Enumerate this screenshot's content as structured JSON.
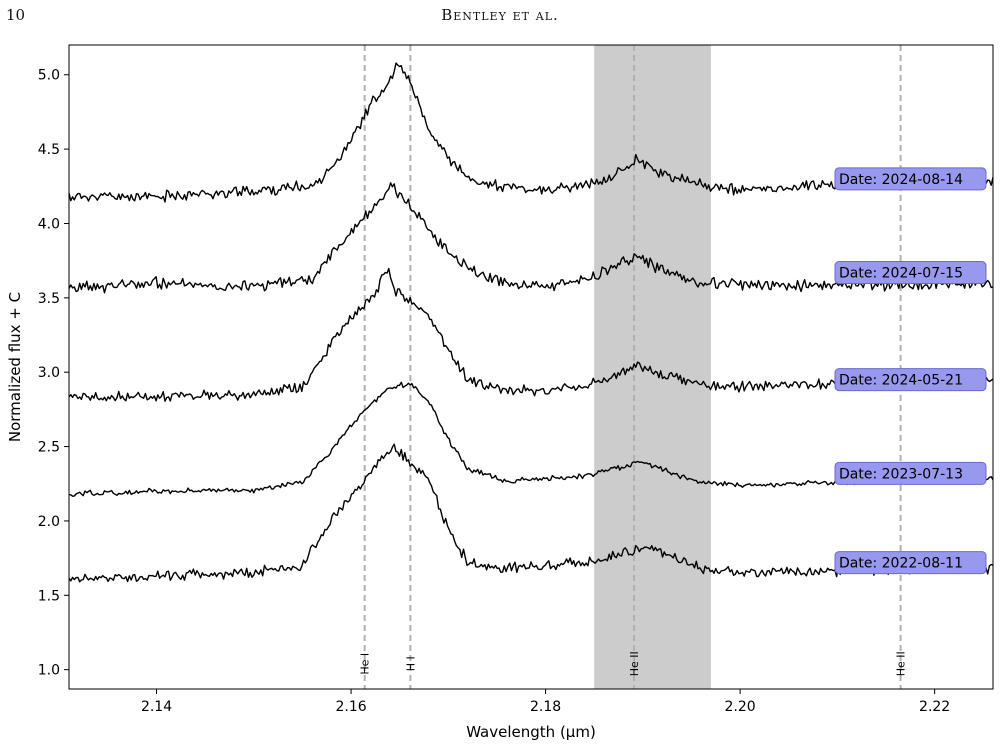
{
  "header": {
    "page_number": "10",
    "running_head": "Bentley et al."
  },
  "chart_data": {
    "type": "line",
    "title": "",
    "xlabel": "Wavelength (μm)",
    "ylabel": "Normalized flux + C",
    "xlim": [
      2.131,
      2.226
    ],
    "ylim": [
      0.87,
      5.2
    ],
    "xticks": [
      2.14,
      2.16,
      2.18,
      2.2,
      2.22
    ],
    "xtick_labels": [
      "2.14",
      "2.16",
      "2.18",
      "2.20",
      "2.22"
    ],
    "yticks": [
      1.0,
      1.5,
      2.0,
      2.5,
      3.0,
      3.5,
      4.0,
      4.5,
      5.0
    ],
    "ytick_labels": [
      "1.0",
      "1.5",
      "2.0",
      "2.5",
      "3.0",
      "3.5",
      "4.0",
      "4.5",
      "5.0"
    ],
    "shaded_region": {
      "x": [
        2.185,
        2.197
      ],
      "color": "#cccccc"
    },
    "reference_lines": [
      {
        "label": "He I",
        "x": 2.1614
      },
      {
        "label": "H I",
        "x": 2.1661
      },
      {
        "label": "He II",
        "x": 2.1891
      },
      {
        "label": "He II",
        "x": 2.2165
      }
    ],
    "line_color": "#000000",
    "ref_line_color": "#b0b0b0",
    "label_box_color": "#9898ee",
    "label_box_edge": "#6a6acc",
    "series": [
      {
        "label": "Date: 2024-08-14",
        "offset": 4.18,
        "seed": 11,
        "noise": 0.028,
        "points": [
          [
            2.131,
            4.18
          ],
          [
            2.14,
            4.18
          ],
          [
            2.15,
            4.22
          ],
          [
            2.156,
            4.25
          ],
          [
            2.159,
            4.45
          ],
          [
            2.162,
            4.8
          ],
          [
            2.164,
            4.95
          ],
          [
            2.1648,
            5.08
          ],
          [
            2.166,
            4.95
          ],
          [
            2.168,
            4.62
          ],
          [
            2.17,
            4.45
          ],
          [
            2.172,
            4.3
          ],
          [
            2.176,
            4.24
          ],
          [
            2.18,
            4.22
          ],
          [
            2.186,
            4.28
          ],
          [
            2.1895,
            4.44
          ],
          [
            2.192,
            4.33
          ],
          [
            2.196,
            4.26
          ],
          [
            2.2,
            4.22
          ],
          [
            2.21,
            4.27
          ],
          [
            2.226,
            4.28
          ]
        ]
      },
      {
        "label": "Date: 2024-07-15",
        "offset": 3.55,
        "seed": 23,
        "noise": 0.03,
        "points": [
          [
            2.131,
            3.56
          ],
          [
            2.14,
            3.6
          ],
          [
            2.15,
            3.58
          ],
          [
            2.156,
            3.62
          ],
          [
            2.159,
            3.88
          ],
          [
            2.162,
            4.08
          ],
          [
            2.164,
            4.25
          ],
          [
            2.1658,
            4.15
          ],
          [
            2.168,
            3.95
          ],
          [
            2.17,
            3.82
          ],
          [
            2.172,
            3.7
          ],
          [
            2.176,
            3.6
          ],
          [
            2.18,
            3.58
          ],
          [
            2.184,
            3.62
          ],
          [
            2.1895,
            3.78
          ],
          [
            2.192,
            3.68
          ],
          [
            2.196,
            3.6
          ],
          [
            2.2,
            3.59
          ],
          [
            2.21,
            3.58
          ],
          [
            2.226,
            3.6
          ]
        ]
      },
      {
        "label": "Date: 2024-05-21",
        "offset": 2.83,
        "seed": 37,
        "noise": 0.026,
        "points": [
          [
            2.131,
            2.82
          ],
          [
            2.14,
            2.84
          ],
          [
            2.15,
            2.85
          ],
          [
            2.155,
            2.9
          ],
          [
            2.159,
            3.3
          ],
          [
            2.162,
            3.48
          ],
          [
            2.1638,
            3.7
          ],
          [
            2.1645,
            3.55
          ],
          [
            2.166,
            3.48
          ],
          [
            2.168,
            3.38
          ],
          [
            2.17,
            3.15
          ],
          [
            2.172,
            2.95
          ],
          [
            2.176,
            2.88
          ],
          [
            2.18,
            2.88
          ],
          [
            2.184,
            2.9
          ],
          [
            2.1895,
            3.05
          ],
          [
            2.192,
            2.98
          ],
          [
            2.196,
            2.92
          ],
          [
            2.2,
            2.9
          ],
          [
            2.21,
            2.92
          ],
          [
            2.226,
            2.95
          ]
        ]
      },
      {
        "label": "Date: 2023-07-13",
        "offset": 2.2,
        "seed": 49,
        "noise": 0.014,
        "points": [
          [
            2.131,
            2.18
          ],
          [
            2.14,
            2.2
          ],
          [
            2.15,
            2.21
          ],
          [
            2.155,
            2.26
          ],
          [
            2.158,
            2.48
          ],
          [
            2.161,
            2.72
          ],
          [
            2.164,
            2.9
          ],
          [
            2.166,
            2.92
          ],
          [
            2.168,
            2.8
          ],
          [
            2.17,
            2.55
          ],
          [
            2.172,
            2.35
          ],
          [
            2.176,
            2.27
          ],
          [
            2.18,
            2.28
          ],
          [
            2.184,
            2.3
          ],
          [
            2.19,
            2.4
          ],
          [
            2.193,
            2.32
          ],
          [
            2.196,
            2.26
          ],
          [
            2.2,
            2.24
          ],
          [
            2.21,
            2.26
          ],
          [
            2.226,
            2.28
          ]
        ]
      },
      {
        "label": "Date: 2022-08-11",
        "offset": 1.6,
        "seed": 61,
        "noise": 0.026,
        "points": [
          [
            2.131,
            1.6
          ],
          [
            2.14,
            1.63
          ],
          [
            2.15,
            1.65
          ],
          [
            2.155,
            1.7
          ],
          [
            2.158,
            2.0
          ],
          [
            2.161,
            2.25
          ],
          [
            2.1643,
            2.5
          ],
          [
            2.166,
            2.4
          ],
          [
            2.168,
            2.28
          ],
          [
            2.17,
            1.95
          ],
          [
            2.172,
            1.72
          ],
          [
            2.176,
            1.68
          ],
          [
            2.18,
            1.7
          ],
          [
            2.184,
            1.72
          ],
          [
            2.1905,
            1.82
          ],
          [
            2.193,
            1.75
          ],
          [
            2.196,
            1.68
          ],
          [
            2.2,
            1.66
          ],
          [
            2.21,
            1.66
          ],
          [
            2.226,
            1.68
          ]
        ]
      }
    ]
  }
}
